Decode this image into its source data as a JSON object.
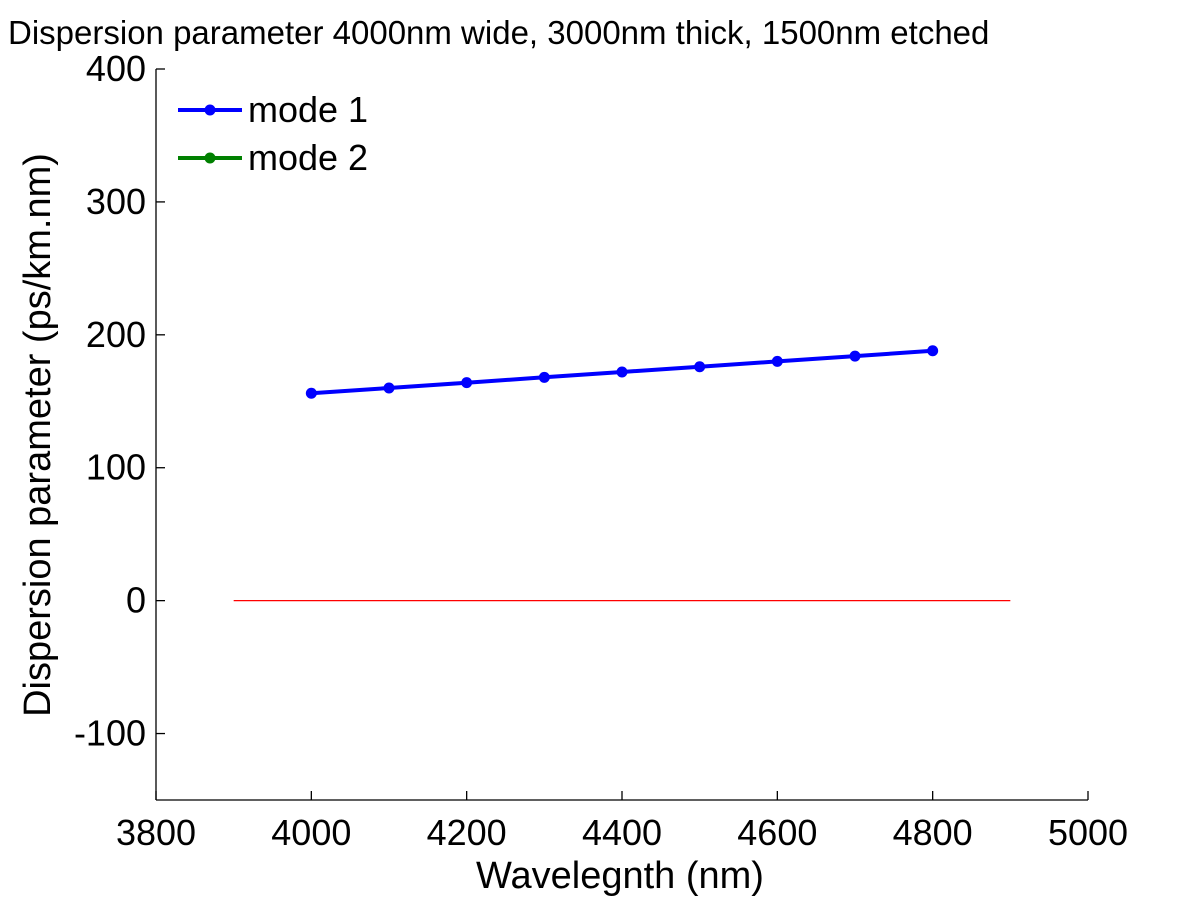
{
  "chart_data": {
    "type": "line",
    "title": "Dispersion parameter 4000nm wide, 3000nm thick, 1500nm etched",
    "xlabel": "Wavelegnth (nm)",
    "ylabel": "Dispersion parameter (ps/km.nm)",
    "xlim": [
      3800,
      5000
    ],
    "ylim": [
      -150,
      400
    ],
    "xticks": [
      "3800",
      "4000",
      "4200",
      "4400",
      "4600",
      "4800",
      "5000"
    ],
    "yticks": [
      "-100",
      "0",
      "100",
      "200",
      "300",
      "400"
    ],
    "grid": false,
    "legend_position": "top-left",
    "series": [
      {
        "name": "mode 1",
        "color": "#0000ff",
        "marker": "dot",
        "x": [
          4000,
          4100,
          4200,
          4300,
          4400,
          4500,
          4600,
          4700,
          4800
        ],
        "y": [
          156,
          160,
          164,
          168,
          172,
          176,
          180,
          184,
          188
        ]
      },
      {
        "name": "mode 2",
        "color": "#008000",
        "marker": "dot",
        "x": [],
        "y": []
      }
    ],
    "reference_lines": [
      {
        "color": "#ff0000",
        "x": [
          3900,
          4900
        ],
        "y": [
          0,
          0
        ]
      }
    ]
  }
}
